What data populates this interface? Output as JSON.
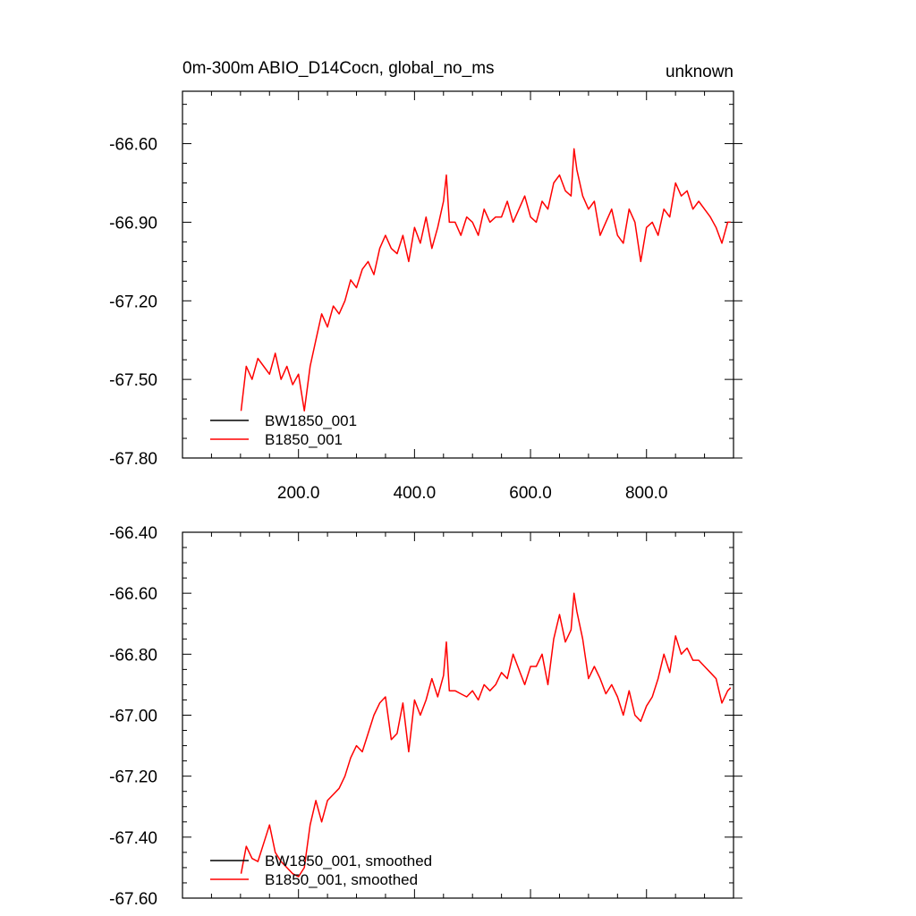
{
  "title_left": "0m-300m ABIO_D14Cocn, global_no_ms",
  "title_right": "unknown",
  "colors": {
    "BW1850_001": "#000000",
    "B1850_001": "#ff0000",
    "axes": "#000000"
  },
  "chart_data": [
    {
      "type": "line",
      "panel": "top",
      "xlim": [
        0,
        950
      ],
      "ylim": [
        -67.8,
        -66.4
      ],
      "x_ticks": [
        200,
        400,
        600,
        800
      ],
      "x_tick_labels": [
        "200.0",
        "400.0",
        "600.0",
        "800.0"
      ],
      "y_ticks": [
        -67.8,
        -67.5,
        -67.2,
        -66.9,
        -66.6
      ],
      "y_tick_labels": [
        "-67.80",
        "-67.50",
        "-67.20",
        "-66.90",
        "-66.60"
      ],
      "legend_position": "bottom-left",
      "series": [
        {
          "name": "BW1850_001",
          "color": "#000000",
          "x": [],
          "y": []
        },
        {
          "name": "B1850_001",
          "color": "#ff0000",
          "x": [
            101,
            110,
            120,
            130,
            140,
            150,
            160,
            170,
            180,
            190,
            200,
            210,
            220,
            230,
            240,
            250,
            260,
            270,
            280,
            290,
            300,
            310,
            320,
            330,
            340,
            350,
            360,
            370,
            380,
            390,
            400,
            410,
            420,
            430,
            440,
            450,
            455,
            460,
            470,
            480,
            490,
            500,
            510,
            520,
            530,
            540,
            550,
            560,
            570,
            580,
            590,
            600,
            610,
            620,
            630,
            640,
            650,
            660,
            670,
            675,
            680,
            690,
            700,
            710,
            720,
            730,
            740,
            750,
            760,
            770,
            780,
            790,
            800,
            810,
            820,
            830,
            840,
            850,
            860,
            870,
            880,
            890,
            900,
            910,
            920,
            930,
            940,
            945
          ],
          "y": [
            -67.62,
            -67.45,
            -67.5,
            -67.42,
            -67.45,
            -67.48,
            -67.4,
            -67.5,
            -67.45,
            -67.52,
            -67.48,
            -67.62,
            -67.45,
            -67.35,
            -67.25,
            -67.3,
            -67.22,
            -67.25,
            -67.2,
            -67.12,
            -67.15,
            -67.08,
            -67.05,
            -67.1,
            -67.0,
            -66.95,
            -67.0,
            -67.02,
            -66.95,
            -67.05,
            -66.92,
            -66.98,
            -66.88,
            -67.0,
            -66.92,
            -66.82,
            -66.72,
            -66.9,
            -66.9,
            -66.95,
            -66.88,
            -66.9,
            -66.95,
            -66.85,
            -66.9,
            -66.88,
            -66.88,
            -66.82,
            -66.9,
            -66.85,
            -66.8,
            -66.88,
            -66.9,
            -66.82,
            -66.85,
            -66.75,
            -66.72,
            -66.78,
            -66.8,
            -66.62,
            -66.7,
            -66.8,
            -66.85,
            -66.82,
            -66.95,
            -66.9,
            -66.85,
            -66.95,
            -66.98,
            -66.85,
            -66.9,
            -67.05,
            -66.92,
            -66.9,
            -66.95,
            -66.85,
            -66.88,
            -66.75,
            -66.8,
            -66.78,
            -66.85,
            -66.82,
            -66.85,
            -66.88,
            -66.92,
            -66.98,
            -66.9,
            -66.9
          ]
        }
      ]
    },
    {
      "type": "line",
      "panel": "bottom",
      "xlim": [
        0,
        950
      ],
      "ylim": [
        -67.6,
        -66.4
      ],
      "y_ticks": [
        -67.6,
        -67.4,
        -67.2,
        -67.0,
        -66.8,
        -66.6,
        -66.4
      ],
      "y_tick_labels": [
        "-67.60",
        "-67.40",
        "-67.20",
        "-67.00",
        "-66.80",
        "-66.60",
        "-66.40"
      ],
      "legend_position": "bottom-left",
      "series": [
        {
          "name": "BW1850_001, smoothed",
          "color": "#000000",
          "x": [],
          "y": []
        },
        {
          "name": "B1850_001, smoothed",
          "color": "#ff0000",
          "x": [
            101,
            110,
            120,
            130,
            140,
            150,
            160,
            170,
            180,
            190,
            200,
            210,
            220,
            230,
            240,
            250,
            260,
            270,
            280,
            290,
            300,
            310,
            320,
            330,
            340,
            350,
            360,
            370,
            380,
            390,
            400,
            410,
            420,
            430,
            440,
            450,
            455,
            460,
            470,
            480,
            490,
            500,
            510,
            520,
            530,
            540,
            550,
            560,
            570,
            580,
            590,
            600,
            610,
            620,
            630,
            640,
            650,
            660,
            670,
            675,
            680,
            690,
            700,
            710,
            720,
            730,
            740,
            750,
            760,
            770,
            780,
            790,
            800,
            810,
            820,
            830,
            840,
            850,
            860,
            870,
            880,
            890,
            900,
            910,
            920,
            930,
            940,
            945
          ],
          "y": [
            -67.52,
            -67.43,
            -67.47,
            -67.48,
            -67.42,
            -67.36,
            -67.45,
            -67.48,
            -67.5,
            -67.52,
            -67.53,
            -67.5,
            -67.36,
            -67.28,
            -67.35,
            -67.28,
            -67.26,
            -67.24,
            -67.2,
            -67.14,
            -67.1,
            -67.12,
            -67.06,
            -67.0,
            -66.96,
            -66.94,
            -67.08,
            -67.06,
            -66.96,
            -67.12,
            -66.95,
            -67.0,
            -66.95,
            -66.88,
            -66.94,
            -66.87,
            -66.76,
            -66.92,
            -66.92,
            -66.93,
            -66.94,
            -66.92,
            -66.95,
            -66.9,
            -66.92,
            -66.9,
            -66.86,
            -66.88,
            -66.8,
            -66.85,
            -66.9,
            -66.84,
            -66.84,
            -66.8,
            -66.9,
            -66.75,
            -66.67,
            -66.76,
            -66.72,
            -66.6,
            -66.66,
            -66.75,
            -66.88,
            -66.84,
            -66.88,
            -66.93,
            -66.9,
            -66.94,
            -67.0,
            -66.92,
            -67.0,
            -67.02,
            -66.97,
            -66.94,
            -66.88,
            -66.8,
            -66.86,
            -66.74,
            -66.8,
            -66.78,
            -66.82,
            -66.82,
            -66.84,
            -66.86,
            -66.88,
            -66.96,
            -66.92,
            -66.91
          ]
        }
      ]
    }
  ]
}
